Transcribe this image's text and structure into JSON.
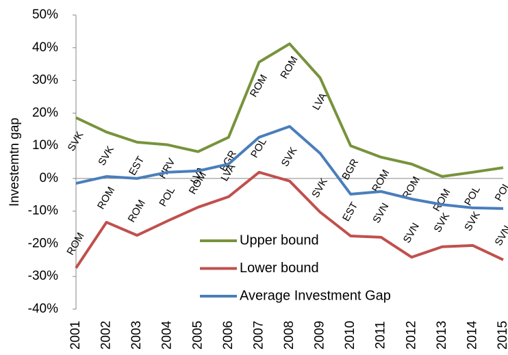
{
  "chart_data": {
    "type": "line",
    "y_label": "Investemtn gap",
    "categories": [
      "2001",
      "2002",
      "2003",
      "2004",
      "2005",
      "2006",
      "2007",
      "2008",
      "2009",
      "2010",
      "2011",
      "2012",
      "2013",
      "2014",
      "2015"
    ],
    "series": [
      {
        "name": "Upper bound",
        "color": "#77933c",
        "values": [
          18.6,
          14.2,
          11.1,
          10.3,
          8.2,
          12.6,
          35.6,
          41.2,
          30.8,
          10.0,
          6.5,
          4.4,
          0.6,
          1.9,
          3.3
        ],
        "point_labels": [
          "SVK",
          "SVK",
          "EST",
          "HRV",
          "LVA",
          "BGR",
          "ROM",
          "ROM",
          "LVA",
          "BGR",
          "ROM",
          "ROM",
          "ROM",
          "POL",
          "POL"
        ]
      },
      {
        "name": "Lower bound",
        "color": "#c0504d",
        "values": [
          -27.4,
          -13.4,
          -17.4,
          -13.0,
          -8.8,
          -5.6,
          1.9,
          -0.8,
          -10.3,
          -17.6,
          -18.0,
          -24.1,
          -20.9,
          -20.5,
          -24.9
        ],
        "point_labels": [
          "ROM",
          "ROM",
          "ROM",
          "POL",
          "ROM",
          "LVA",
          "POL",
          "SVK",
          "SVK",
          "EST",
          "SVN",
          "SVN",
          "SVK",
          "SVK",
          "SVN"
        ]
      },
      {
        "name": "Average Investment Gap",
        "color": "#4a7ebb",
        "values": [
          -1.5,
          0.6,
          0.0,
          1.9,
          2.3,
          4.4,
          12.6,
          15.9,
          7.7,
          -4.8,
          -4.0,
          -6.3,
          -8.0,
          -9.0,
          -9.2
        ]
      }
    ],
    "ylim": [
      -40,
      50
    ],
    "yticks": [
      {
        "value": -40,
        "label": "-40%"
      },
      {
        "value": -30,
        "label": "-30%"
      },
      {
        "value": -20,
        "label": "-20%"
      },
      {
        "value": -10,
        "label": "-10%"
      },
      {
        "value": 0,
        "label": "0%"
      },
      {
        "value": 10,
        "label": "10%"
      },
      {
        "value": 20,
        "label": "20%"
      },
      {
        "value": 30,
        "label": "30%"
      },
      {
        "value": 40,
        "label": "40%"
      },
      {
        "value": 50,
        "label": "50%"
      }
    ],
    "grid": false
  }
}
